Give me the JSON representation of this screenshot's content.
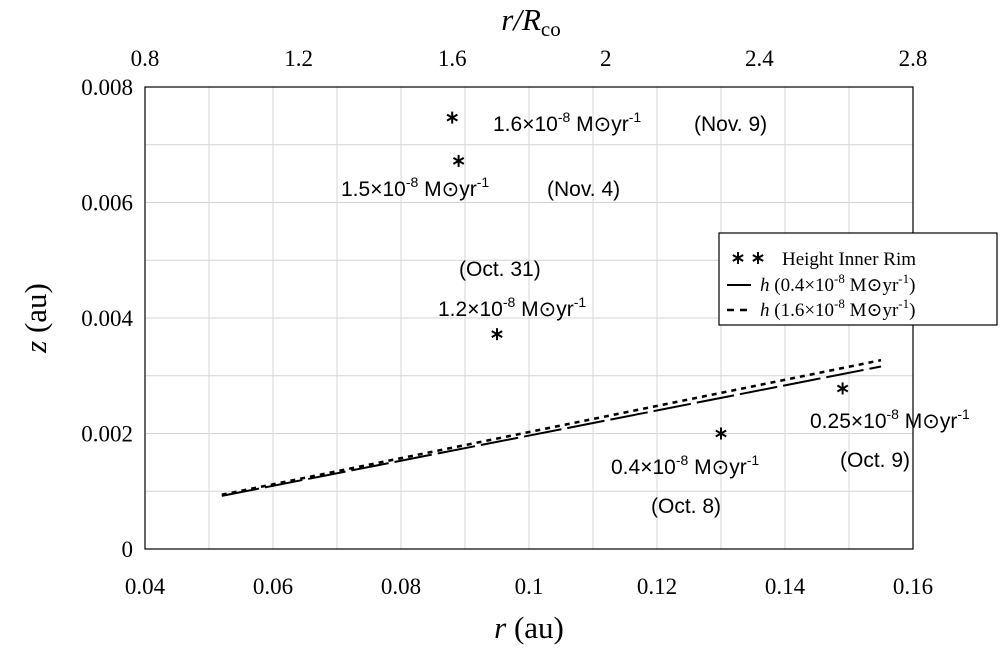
{
  "chart_data": {
    "type": "scatter",
    "title": "",
    "xlabel": {
      "main": "r",
      "unit": " (au)"
    },
    "ylabel": {
      "main": "z",
      "unit": " (au)"
    },
    "top_axis_label": {
      "main": "r/R",
      "sub": "co"
    },
    "xlim": [
      0.04,
      0.16
    ],
    "ylim": [
      0,
      0.008
    ],
    "top_xlim_ratio": [
      0.8,
      2.8
    ],
    "x_ticks": [
      "0.04",
      "0.06",
      "0.08",
      "0.1",
      "0.12",
      "0.14",
      "0.16"
    ],
    "y_ticks": [
      "0",
      "0.002",
      "0.004",
      "0.006",
      "0.008"
    ],
    "top_ticks": [
      "0.8",
      "1.2",
      "1.6",
      "2",
      "2.4",
      "2.8"
    ],
    "grid": true,
    "legend_position": "right",
    "series": [
      {
        "name": "Height Inner Rim",
        "marker": "asterisk",
        "points": [
          {
            "x": 0.088,
            "y": 0.00747
          },
          {
            "x": 0.089,
            "y": 0.00672
          },
          {
            "x": 0.095,
            "y": 0.00372
          },
          {
            "x": 0.13,
            "y": 0.002
          },
          {
            "x": 0.149,
            "y": 0.00278
          }
        ]
      },
      {
        "name": "h (0.4×10⁻⁸ M⊙yr⁻¹)",
        "style": "long-dash",
        "x": [
          0.052,
          0.155
        ],
        "y": [
          0.00092,
          0.00316
        ]
      },
      {
        "name": "h (1.6×10⁻⁸ M⊙yr⁻¹)",
        "style": "short-dash",
        "x": [
          0.052,
          0.155
        ],
        "y": [
          0.00094,
          0.00327
        ]
      }
    ],
    "legend_entries": [
      {
        "label": "Height Inner Rim",
        "marker": "asterisk"
      },
      {
        "label_main": "h",
        "label_rest": " (0.4×10",
        "exp": "-8",
        "unit": " M⊙yr",
        "unit_exp": "-1",
        "close": ")",
        "style": "long-dash"
      },
      {
        "label_main": "h",
        "label_rest": " (1.6×10",
        "exp": "-8",
        "unit": " M⊙yr",
        "unit_exp": "-1",
        "close": ")",
        "style": "short-dash"
      }
    ],
    "annotations": [
      {
        "rate": "1.6×10",
        "exp": "-8",
        "unit": " M⊙yr",
        "unit_exp": "-1",
        "date": "(Nov. 9)"
      },
      {
        "rate": "1.5×10",
        "exp": "-8",
        "unit": " M⊙yr",
        "unit_exp": "-1",
        "date": "(Nov. 4)"
      },
      {
        "rate": "1.2×10",
        "exp": "-8",
        "unit": " M⊙yr",
        "unit_exp": "-1",
        "date": "(Oct. 31)"
      },
      {
        "rate": "0.4×10",
        "exp": "-8",
        "unit": " M⊙yr",
        "unit_exp": "-1",
        "date": "(Oct. 8)"
      },
      {
        "rate": "0.25×10",
        "exp": "-8",
        "unit": " M⊙yr",
        "unit_exp": "-1",
        "date": "(Oct. 9)"
      }
    ]
  }
}
